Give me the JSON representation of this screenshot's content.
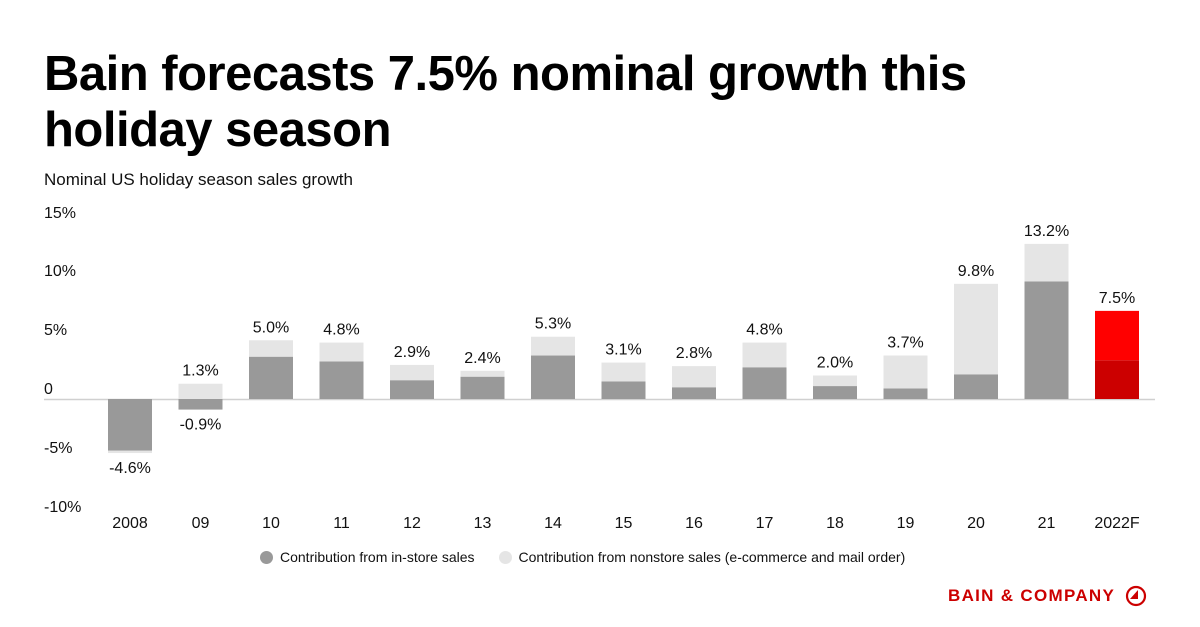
{
  "header": {
    "title": "Bain forecasts 7.5% nominal growth this holiday season",
    "subtitle": "Nominal US holiday season sales growth"
  },
  "chart_data": {
    "type": "bar",
    "stacked": true,
    "title": "Bain forecasts 7.5% nominal growth this holiday season",
    "subtitle": "Nominal US holiday season sales growth",
    "xlabel": "",
    "ylabel": "",
    "ylim": [
      -10,
      15
    ],
    "yticks": [
      15,
      10,
      5,
      0,
      -5,
      -10
    ],
    "ytick_labels": [
      "15%",
      "10%",
      "5%",
      "0",
      "-5%",
      "-10%"
    ],
    "grid": false,
    "categories": [
      "2008",
      "09",
      "10",
      "11",
      "12",
      "13",
      "14",
      "15",
      "16",
      "17",
      "18",
      "19",
      "20",
      "21",
      "2022F"
    ],
    "series": [
      {
        "name": "Contribution from in-store sales",
        "color": "#999999",
        "forecast_color": "#cc0000",
        "values": [
          -4.4,
          -0.9,
          3.6,
          3.2,
          1.6,
          1.9,
          3.7,
          1.5,
          1.0,
          2.7,
          1.1,
          0.9,
          2.1,
          10.0,
          3.3
        ]
      },
      {
        "name": "Contribution from nonstore sales (e-commerce and mail order)",
        "color": "#e5e5e5",
        "forecast_color": "#ff0000",
        "values": [
          -0.2,
          1.3,
          1.4,
          1.6,
          1.3,
          0.5,
          1.6,
          1.6,
          1.8,
          2.1,
          0.9,
          2.8,
          7.7,
          3.2,
          4.2
        ]
      }
    ],
    "totals": [
      -4.6,
      0.4,
      5.0,
      4.8,
      2.9,
      2.4,
      5.3,
      3.1,
      2.8,
      4.8,
      2.0,
      3.7,
      9.8,
      13.2,
      7.5
    ],
    "data_labels": [
      {
        "cat": "2008",
        "text": "-4.6%",
        "pos": "below"
      },
      {
        "cat": "09",
        "text": "1.3%",
        "pos": "above"
      },
      {
        "cat": "09",
        "text": "-0.9%",
        "pos": "below"
      },
      {
        "cat": "10",
        "text": "5.0%",
        "pos": "above"
      },
      {
        "cat": "11",
        "text": "4.8%",
        "pos": "above"
      },
      {
        "cat": "12",
        "text": "2.9%",
        "pos": "above"
      },
      {
        "cat": "13",
        "text": "2.4%",
        "pos": "above"
      },
      {
        "cat": "14",
        "text": "5.3%",
        "pos": "above"
      },
      {
        "cat": "15",
        "text": "3.1%",
        "pos": "above"
      },
      {
        "cat": "16",
        "text": "2.8%",
        "pos": "above"
      },
      {
        "cat": "17",
        "text": "4.8%",
        "pos": "above"
      },
      {
        "cat": "18",
        "text": "2.0%",
        "pos": "above"
      },
      {
        "cat": "19",
        "text": "3.7%",
        "pos": "above"
      },
      {
        "cat": "20",
        "text": "9.8%",
        "pos": "above"
      },
      {
        "cat": "21",
        "text": "13.2%",
        "pos": "above"
      },
      {
        "cat": "2022F",
        "text": "7.5%",
        "pos": "above"
      }
    ],
    "highlight_category": "2022F",
    "legend_position": "bottom"
  },
  "legend": {
    "items": [
      {
        "label": "Contribution from in-store sales",
        "color": "#999999"
      },
      {
        "label": "Contribution from nonstore sales (e-commerce and mail order)",
        "color": "#e5e5e5"
      }
    ]
  },
  "brand": {
    "name": "BAIN & COMPANY",
    "color": "#cc0000",
    "icon": "bain-logo-icon"
  }
}
